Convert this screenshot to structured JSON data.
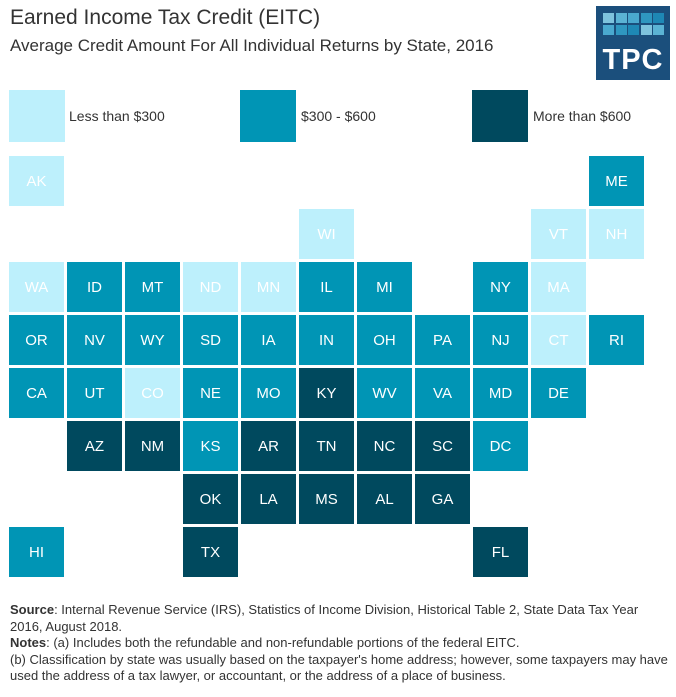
{
  "header": {
    "title": "Earned Income Tax Credit (EITC)",
    "subtitle": "Average Credit Amount For All Individual Returns by State, 2016",
    "logo_text": "TPC"
  },
  "colors": {
    "low": "#bdf0fc",
    "mid": "#0095b5",
    "high": "#00495e"
  },
  "chart_data": {
    "type": "tile-map",
    "title": "Earned Income Tax Credit (EITC)",
    "subtitle": "Average Credit Amount For All Individual Returns by State, 2016",
    "legend": [
      {
        "key": "low",
        "label": "Less than $300"
      },
      {
        "key": "mid",
        "label": "$300 - $600"
      },
      {
        "key": "high",
        "label": "More than $600"
      }
    ],
    "states": [
      [
        "AK",
        0,
        0,
        "low"
      ],
      [
        "ME",
        10,
        0,
        "mid"
      ],
      [
        "WI",
        5,
        1,
        "low"
      ],
      [
        "VT",
        9,
        1,
        "low"
      ],
      [
        "NH",
        10,
        1,
        "low"
      ],
      [
        "WA",
        0,
        2,
        "low"
      ],
      [
        "ID",
        1,
        2,
        "mid"
      ],
      [
        "MT",
        2,
        2,
        "mid"
      ],
      [
        "ND",
        3,
        2,
        "low"
      ],
      [
        "MN",
        4,
        2,
        "low"
      ],
      [
        "IL",
        5,
        2,
        "mid"
      ],
      [
        "MI",
        6,
        2,
        "mid"
      ],
      [
        "NY",
        8,
        2,
        "mid"
      ],
      [
        "MA",
        9,
        2,
        "low"
      ],
      [
        "OR",
        0,
        3,
        "mid"
      ],
      [
        "NV",
        1,
        3,
        "mid"
      ],
      [
        "WY",
        2,
        3,
        "mid"
      ],
      [
        "SD",
        3,
        3,
        "mid"
      ],
      [
        "IA",
        4,
        3,
        "mid"
      ],
      [
        "IN",
        5,
        3,
        "mid"
      ],
      [
        "OH",
        6,
        3,
        "mid"
      ],
      [
        "PA",
        7,
        3,
        "mid"
      ],
      [
        "NJ",
        8,
        3,
        "mid"
      ],
      [
        "CT",
        9,
        3,
        "low"
      ],
      [
        "RI",
        10,
        3,
        "mid"
      ],
      [
        "CA",
        0,
        4,
        "mid"
      ],
      [
        "UT",
        1,
        4,
        "mid"
      ],
      [
        "CO",
        2,
        4,
        "low"
      ],
      [
        "NE",
        3,
        4,
        "mid"
      ],
      [
        "MO",
        4,
        4,
        "mid"
      ],
      [
        "KY",
        5,
        4,
        "high"
      ],
      [
        "WV",
        6,
        4,
        "mid"
      ],
      [
        "VA",
        7,
        4,
        "mid"
      ],
      [
        "MD",
        8,
        4,
        "mid"
      ],
      [
        "DE",
        9,
        4,
        "mid"
      ],
      [
        "AZ",
        1,
        5,
        "high"
      ],
      [
        "NM",
        2,
        5,
        "high"
      ],
      [
        "KS",
        3,
        5,
        "mid"
      ],
      [
        "AR",
        4,
        5,
        "high"
      ],
      [
        "TN",
        5,
        5,
        "high"
      ],
      [
        "NC",
        6,
        5,
        "high"
      ],
      [
        "SC",
        7,
        5,
        "high"
      ],
      [
        "DC",
        8,
        5,
        "mid"
      ],
      [
        "OK",
        3,
        6,
        "high"
      ],
      [
        "LA",
        4,
        6,
        "high"
      ],
      [
        "MS",
        5,
        6,
        "high"
      ],
      [
        "AL",
        6,
        6,
        "high"
      ],
      [
        "GA",
        7,
        6,
        "high"
      ],
      [
        "HI",
        0,
        7,
        "mid"
      ],
      [
        "TX",
        3,
        7,
        "high"
      ],
      [
        "FL",
        8,
        7,
        "high"
      ]
    ]
  },
  "notes": {
    "source_label": "Source",
    "source_text": ": Internal Revenue Service (IRS), Statistics of Income Division, Historical Table 2, State Data Tax Year 2016, August 2018.",
    "notes_label": "Notes",
    "note_a": ": (a) Includes both the refundable and non-refundable portions of the federal EITC.",
    "note_b": "(b) Classification by state was usually based on the taxpayer's home address; however, some taxpayers may have used the address of a tax lawyer, or accountant, or the address of a place of business."
  }
}
